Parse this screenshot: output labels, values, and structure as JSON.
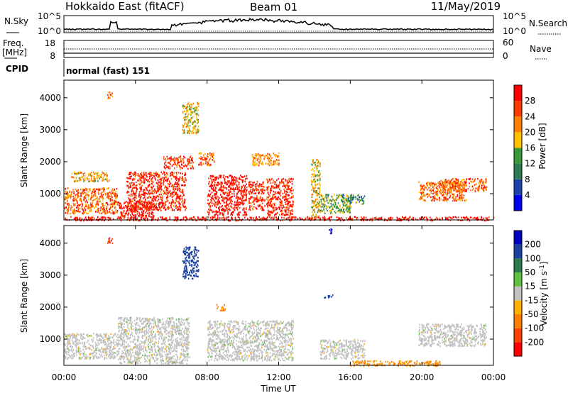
{
  "header": {
    "radar": "Hokkaido East (fitACF)",
    "beam": "Beam 01",
    "date": "11/May/2019"
  },
  "noise_panel": {
    "left_label": "N.Sky",
    "right_label": "N.Search",
    "left_ticks": [
      "10^5",
      "10^0"
    ],
    "right_ticks": [
      "10^5",
      "10^0"
    ]
  },
  "freq_panel": {
    "left_label_top": "Freq.",
    "left_label_units": "[MHz]",
    "right_label": "Nave",
    "left_ticks": [
      "18",
      "8"
    ],
    "right_ticks": [
      "60",
      "0"
    ]
  },
  "cpid": {
    "label": "CPID",
    "mode": "normal (fast) 151"
  },
  "colors": {
    "power_scale": [
      "#0000ee",
      "#1a44aa",
      "#2e7a55",
      "#3a9a3a",
      "#ffc000",
      "#ff8000",
      "#ff3a00",
      "#ff0000"
    ],
    "velocity_scale": [
      "#ff0000",
      "#ff4000",
      "#ff8000",
      "#ffb000",
      "#c0c0c0",
      "#60c040",
      "#2a7a50",
      "#1a40a0",
      "#0000c0"
    ],
    "ground_scatter": "#c0c0c0"
  },
  "chart_data": [
    {
      "type": "heatmap",
      "name": "power",
      "ylabel": "Slant Range [km]",
      "xlim_hours": [
        0,
        24
      ],
      "ylim": [
        180,
        4550
      ],
      "yticks": [
        "1000",
        "2000",
        "3000",
        "4000"
      ],
      "ytick_values": [
        1000,
        2000,
        3000,
        4000
      ],
      "colorbar": {
        "label": "Power [dB]",
        "ticks": [
          "4",
          "8",
          "12",
          "16",
          "20",
          "24",
          "28"
        ],
        "tick_values": [
          4,
          8,
          12,
          16,
          20,
          24,
          28
        ],
        "range": [
          0,
          32
        ]
      },
      "echo_regions": [
        {
          "t": [
            0.0,
            3.0
          ],
          "r": [
            400,
            1200
          ],
          "dB": 24
        },
        {
          "t": [
            0.4,
            2.5
          ],
          "r": [
            1400,
            1700
          ],
          "dB": 20
        },
        {
          "t": [
            3.0,
            5.0
          ],
          "r": [
            250,
            800
          ],
          "dB": 30
        },
        {
          "t": [
            3.5,
            6.8
          ],
          "r": [
            500,
            1700
          ],
          "dB": 28
        },
        {
          "t": [
            5.5,
            7.2
          ],
          "r": [
            1800,
            2200
          ],
          "dB": 26
        },
        {
          "t": [
            7.5,
            8.4
          ],
          "r": [
            1900,
            2300
          ],
          "dB": 24
        },
        {
          "t": [
            8.0,
            10.2
          ],
          "r": [
            350,
            1600
          ],
          "dB": 30
        },
        {
          "t": [
            10.3,
            11.2
          ],
          "r": [
            500,
            1400
          ],
          "dB": 28
        },
        {
          "t": [
            11.3,
            12.8
          ],
          "r": [
            350,
            1500
          ],
          "dB": 28
        },
        {
          "t": [
            10.5,
            12.0
          ],
          "r": [
            1900,
            2300
          ],
          "dB": 22
        },
        {
          "t": [
            13.8,
            14.3
          ],
          "r": [
            250,
            2100
          ],
          "dB": 18
        },
        {
          "t": [
            14.3,
            16.0
          ],
          "r": [
            400,
            1000
          ],
          "dB": 14
        },
        {
          "t": [
            15.5,
            16.8
          ],
          "r": [
            700,
            1000
          ],
          "dB": 12
        },
        {
          "t": [
            19.8,
            22.5
          ],
          "r": [
            800,
            1400
          ],
          "dB": 24
        },
        {
          "t": [
            21.0,
            23.6
          ],
          "r": [
            1100,
            1500
          ],
          "dB": 24
        },
        {
          "t": [
            2.4,
            2.7
          ],
          "r": [
            4000,
            4200
          ],
          "dB": 22
        },
        {
          "t": [
            6.6,
            7.5
          ],
          "r": [
            2900,
            3900
          ],
          "dB": 18
        },
        {
          "t": [
            0.0,
            24.0
          ],
          "r": [
            180,
            300
          ],
          "dB": 30
        }
      ]
    },
    {
      "type": "heatmap",
      "name": "velocity",
      "ylabel": "Slant Range [km]",
      "xlabel": "Time UT",
      "xlim_hours": [
        0,
        24
      ],
      "ylim": [
        180,
        4550
      ],
      "yticks": [
        "1000",
        "2000",
        "3000",
        "4000"
      ],
      "ytick_values": [
        1000,
        2000,
        3000,
        4000
      ],
      "xticks": [
        "00:00",
        "04:00",
        "08:00",
        "12:00",
        "16:00",
        "20:00",
        "00:00"
      ],
      "xtick_values": [
        0,
        4,
        8,
        12,
        16,
        20,
        24
      ],
      "colorbar": {
        "label": "Velocity [m s^-1]",
        "ticks": [
          "-200",
          "-100",
          "-50",
          "-15",
          "15",
          "50",
          "100",
          "200"
        ],
        "tick_values": [
          -200,
          -100,
          -50,
          -15,
          15,
          50,
          100,
          200
        ],
        "range": [
          -250,
          250
        ]
      },
      "echo_regions": [
        {
          "t": [
            0.0,
            3.0
          ],
          "r": [
            400,
            1200
          ],
          "vel": 0
        },
        {
          "t": [
            3.0,
            7.0
          ],
          "r": [
            250,
            1700
          ],
          "vel": 0
        },
        {
          "t": [
            8.0,
            12.8
          ],
          "r": [
            350,
            1600
          ],
          "vel": 0
        },
        {
          "t": [
            14.3,
            16.8
          ],
          "r": [
            400,
            1000
          ],
          "vel": 0
        },
        {
          "t": [
            19.8,
            23.6
          ],
          "r": [
            800,
            1500
          ],
          "vel": 0
        },
        {
          "t": [
            6.6,
            7.5
          ],
          "r": [
            2900,
            3900
          ],
          "vel": 150
        },
        {
          "t": [
            14.8,
            15.0
          ],
          "r": [
            4300,
            4500
          ],
          "vel": 200
        },
        {
          "t": [
            14.5,
            15.0
          ],
          "r": [
            2300,
            2400
          ],
          "vel": 120
        },
        {
          "t": [
            2.4,
            2.7
          ],
          "r": [
            4000,
            4200
          ],
          "vel": -200
        },
        {
          "t": [
            16.0,
            21.0
          ],
          "r": [
            180,
            350
          ],
          "vel": -60
        },
        {
          "t": [
            8.5,
            9.0
          ],
          "r": [
            1900,
            2100
          ],
          "vel": -60
        }
      ]
    }
  ]
}
